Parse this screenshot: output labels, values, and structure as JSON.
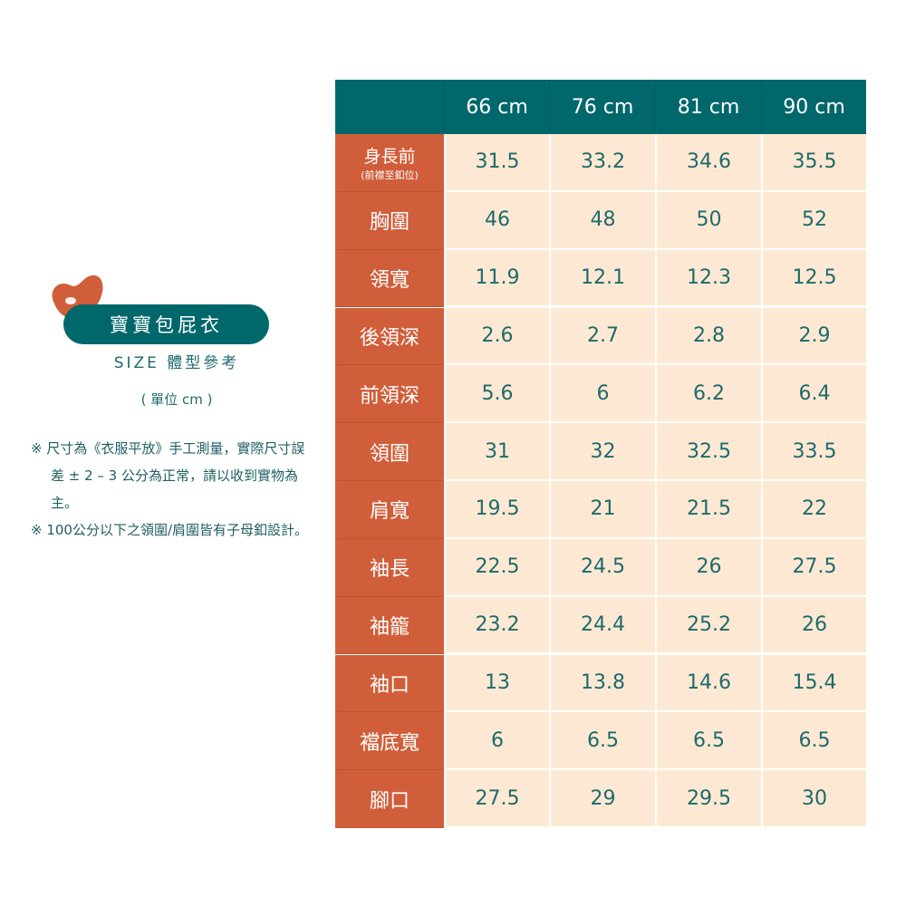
{
  "header": {
    "title": "寶寶包屁衣",
    "subtitle": "SIZE 體型參考",
    "unit": "( 單位 cm )"
  },
  "notes": [
    "※ 尺寸為《衣服平放》手工測量，實際尺寸誤差 ± 2 – 3 公分為正常，請以收到實物為主。",
    "※ 100公分以下之領圍/肩圍皆有子母釦設計。"
  ],
  "table": {
    "columns": [
      "66 cm",
      "76 cm",
      "81 cm",
      "90 cm"
    ],
    "rows": [
      {
        "label": "身長前",
        "note": "(前襟至釦位)",
        "values": [
          31.5,
          33.2,
          34.6,
          35.5
        ]
      },
      {
        "label": "胸圍",
        "values": [
          46,
          48,
          50,
          52
        ]
      },
      {
        "label": "領寬",
        "values": [
          11.9,
          12.1,
          12.3,
          12.5
        ]
      },
      {
        "label": "後領深",
        "values": [
          2.6,
          2.7,
          2.8,
          2.9
        ]
      },
      {
        "label": "前領深",
        "values": [
          5.6,
          6,
          6.2,
          6.4
        ]
      },
      {
        "label": "領圍",
        "values": [
          31,
          32,
          32.5,
          33.5
        ]
      },
      {
        "label": "肩寬",
        "values": [
          19.5,
          21,
          21.5,
          22
        ]
      },
      {
        "label": "袖長",
        "values": [
          22.5,
          24.5,
          26,
          27.5
        ]
      },
      {
        "label": "袖籠",
        "values": [
          23.2,
          24.4,
          25.2,
          26
        ]
      },
      {
        "label": "袖口",
        "values": [
          13,
          13.8,
          14.6,
          15.4
        ]
      },
      {
        "label": "襠底寬",
        "values": [
          6,
          6.5,
          6.5,
          6.5
        ]
      },
      {
        "label": "腳口",
        "values": [
          27.5,
          29,
          29.5,
          30
        ]
      }
    ]
  }
}
